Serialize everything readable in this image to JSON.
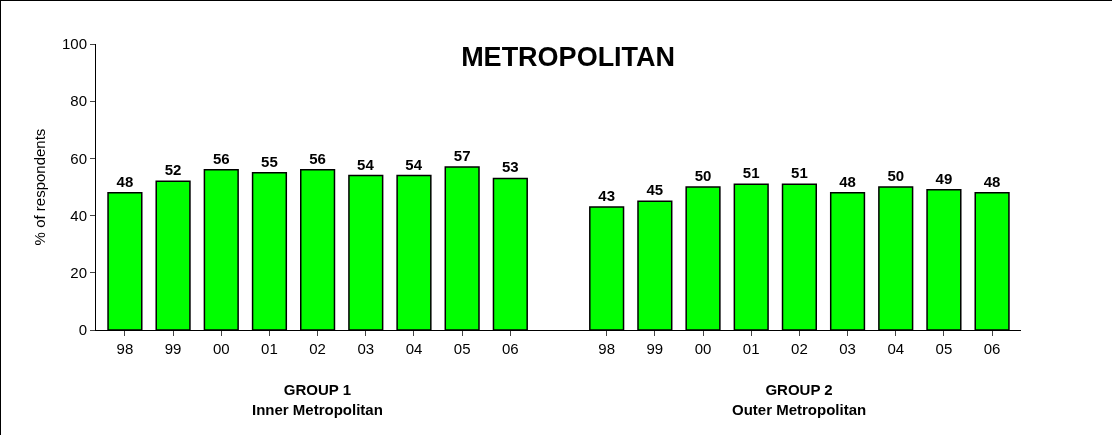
{
  "chart_data": {
    "type": "bar",
    "title": "METROPOLITAN",
    "ylabel": "% of respondents",
    "categories": [
      "98",
      "99",
      "00",
      "01",
      "02",
      "03",
      "04",
      "05",
      "06",
      null,
      "98",
      "99",
      "00",
      "01",
      "02",
      "03",
      "04",
      "05",
      "06"
    ],
    "values": [
      48,
      52,
      56,
      55,
      56,
      54,
      54,
      57,
      53,
      null,
      43,
      45,
      50,
      51,
      51,
      48,
      50,
      49,
      48
    ],
    "color": "#00ff00",
    "ylim": [
      0,
      100
    ],
    "yticks": [
      0,
      20,
      40,
      60,
      80,
      100
    ],
    "grid": false,
    "data_labels": true,
    "annotations": [
      "GROUP 1\nInner Metropolitan",
      "GROUP 2\nOuter Metropolitan"
    ]
  }
}
